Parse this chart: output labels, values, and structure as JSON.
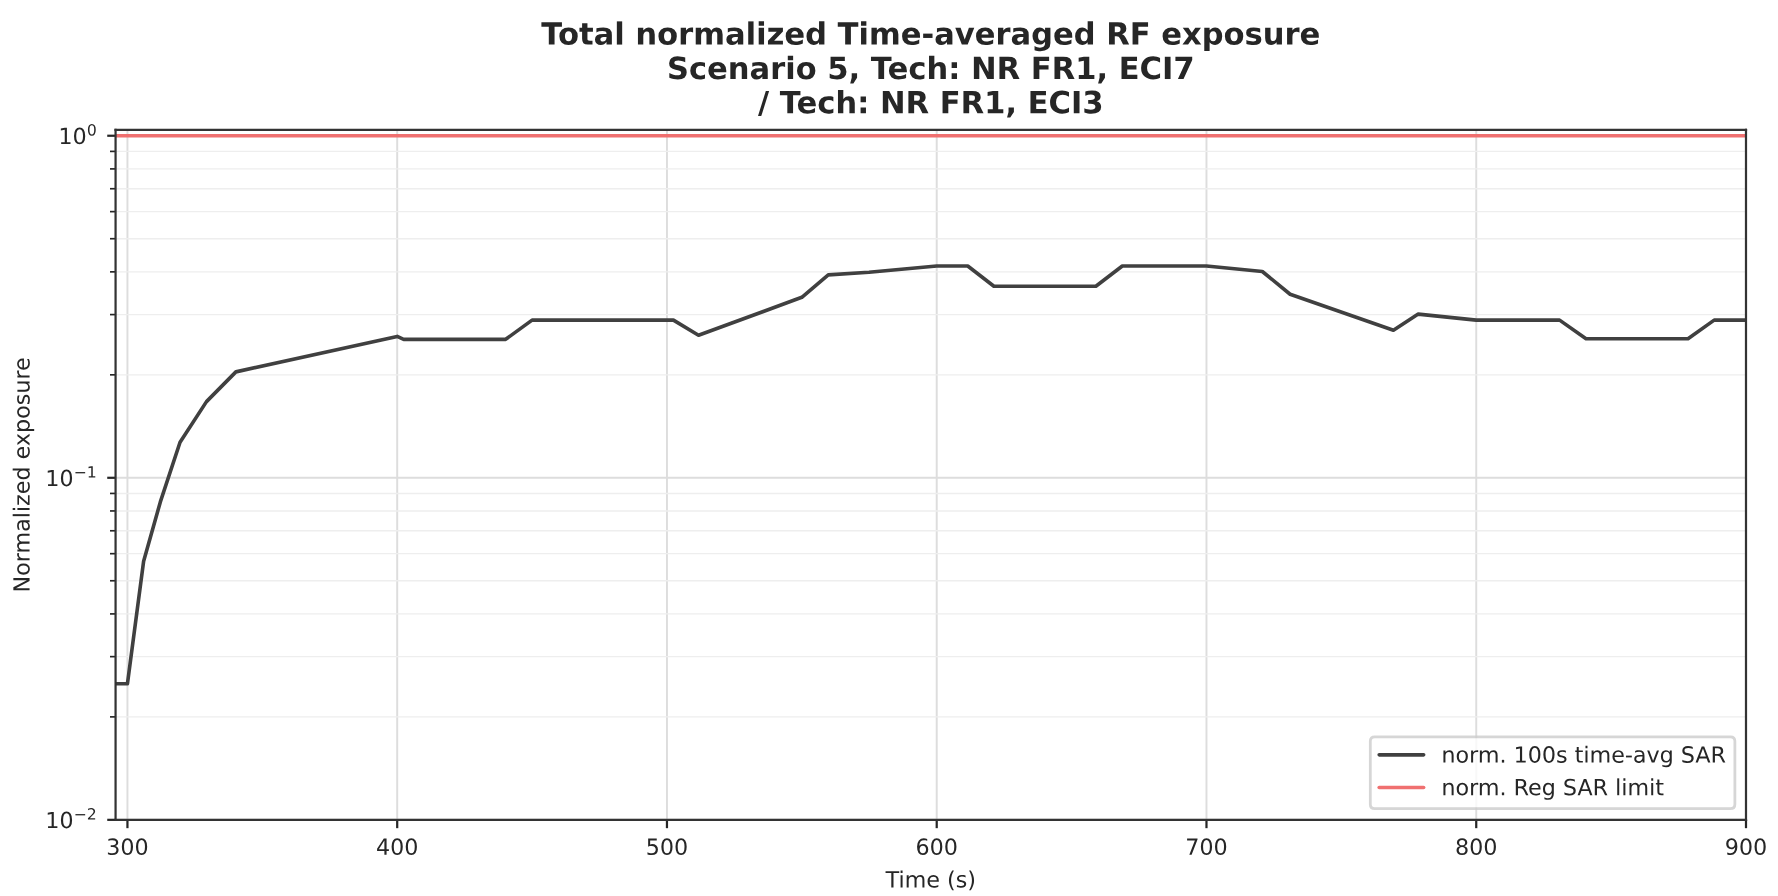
{
  "chart_data": {
    "type": "line",
    "title": "Total normalized Time-averaged RF exposure\nScenario 5, Tech: NR FR1, ECI7\n/ Tech: NR FR1, ECI3",
    "xlabel": "Time (s)",
    "ylabel": "Normalized exposure",
    "series": [
      {
        "name": "norm. 100s time-avg SAR",
        "color": "#404040",
        "x": [
          295.6,
          300,
          306,
          312.2,
          319.5,
          329.3,
          340.2,
          400,
          402.4,
          440.2,
          450,
          502.4,
          511.7,
          550,
          559.8,
          574.9,
          600,
          611.5,
          621.2,
          659,
          668.8,
          700,
          720.7,
          731,
          769.3,
          778.5,
          800,
          830.9,
          840.7,
          878.5,
          888.2,
          900
        ],
        "values": [
          0.025,
          0.025,
          0.057,
          0.085,
          0.127,
          0.167,
          0.204,
          0.259,
          0.254,
          0.254,
          0.289,
          0.289,
          0.261,
          0.337,
          0.392,
          0.399,
          0.416,
          0.416,
          0.363,
          0.363,
          0.416,
          0.416,
          0.401,
          0.344,
          0.27,
          0.301,
          0.289,
          0.289,
          0.255,
          0.255,
          0.289,
          0.289
        ]
      },
      {
        "name": "norm. Reg SAR limit",
        "color": "#f07070",
        "x": [
          295.6,
          900
        ],
        "values": [
          1,
          1
        ]
      }
    ],
    "log": "y",
    "xlim": [
      295.6,
      900
    ],
    "ylim": [
      0.01,
      1.04
    ],
    "xticks": [
      300,
      400,
      500,
      600,
      700,
      800,
      900
    ],
    "yticks": [
      {
        "value": 0.01,
        "label": "10$^{−2}$"
      },
      {
        "value": 0.1,
        "label": "10$^{−1}$"
      },
      {
        "value": 1,
        "label": "10$^{0}$"
      }
    ],
    "grid": true,
    "legend": "bottom right",
    "line_style": "solid"
  }
}
